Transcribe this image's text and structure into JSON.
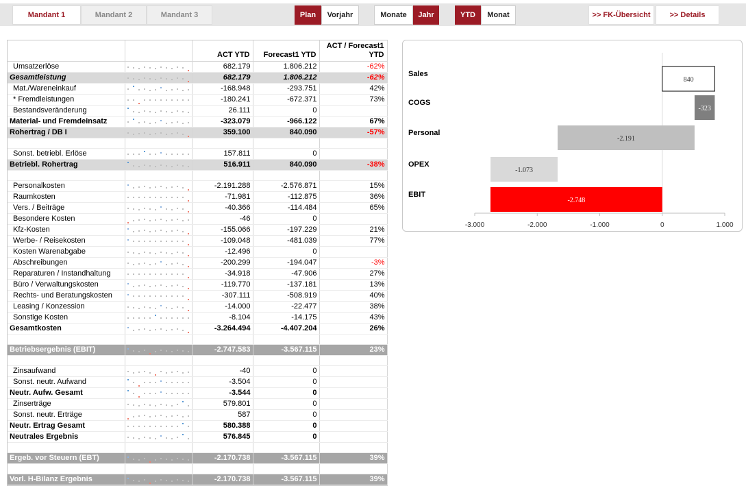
{
  "topbar": {
    "tabs": [
      "Mandant 1",
      "Mandant 2",
      "Mandant 3"
    ],
    "active_tab": 0,
    "plan": "Plan",
    "vorjahr": "Vorjahr",
    "monate": "Monate",
    "jahr": "Jahr",
    "ytd": "YTD",
    "monat": "Monat",
    "fk_link": ">> FK-Übersicht",
    "details_link": ">> Details"
  },
  "colors": {
    "accent": "#9b1b25",
    "negative": "#ff0000",
    "band": "#d9d9d9",
    "total": "#a6a6a6"
  },
  "table": {
    "headers": {
      "label": "",
      "spark": "",
      "act": "ACT YTD",
      "fc": "Forecast1 YTD",
      "pct": "ACT / Forecast1 YTD"
    },
    "rows": [
      {
        "label": "Umsatzerlöse",
        "act": "682.179",
        "fc": "1.806.212",
        "pct": "-62%",
        "style": "indent",
        "neg": true,
        "spark": 1
      },
      {
        "label": "Gesamtleistung",
        "act": "682.179",
        "fc": "1.806.212",
        "pct": "-62%",
        "style": "italic band",
        "neg": true,
        "spark": 1
      },
      {
        "label": "Mat./Wareneinkauf",
        "act": "-168.948",
        "fc": "-293.751",
        "pct": "42%",
        "style": "indent",
        "spark": 2
      },
      {
        "label": "* Fremdleistungen",
        "act": "-180.241",
        "fc": "-672.371",
        "pct": "73%",
        "style": "indent",
        "spark": 3
      },
      {
        "label": "Bestandsveränderung",
        "act": "26.111",
        "fc": "0",
        "pct": "",
        "style": "indent",
        "spark": 4
      },
      {
        "label": "Material- und Fremdeinsatz",
        "act": "-323.079",
        "fc": "-966.122",
        "pct": "67%",
        "style": "bold",
        "spark": 2
      },
      {
        "label": "Rohertrag / DB I",
        "act": "359.100",
        "fc": "840.090",
        "pct": "-57%",
        "style": "bold band",
        "neg": true,
        "spark": 5
      },
      {
        "label": "",
        "act": "",
        "fc": "",
        "pct": "",
        "style": "spacer"
      },
      {
        "label": "Sonst. betriebl. Erlöse",
        "act": "157.811",
        "fc": "0",
        "pct": "",
        "style": "indent",
        "spark": 6
      },
      {
        "label": "Betriebl. Rohertrag",
        "act": "516.911",
        "fc": "840.090",
        "pct": "-38%",
        "style": "bold band",
        "neg": true,
        "spark": 7
      },
      {
        "label": "",
        "act": "",
        "fc": "",
        "pct": "",
        "style": "spacer"
      },
      {
        "label": "Personalkosten",
        "act": "-2.191.288",
        "fc": "-2.576.871",
        "pct": "15%",
        "style": "indent",
        "spark": 8
      },
      {
        "label": "Raumkosten",
        "act": "-71.981",
        "fc": "-112.875",
        "pct": "36%",
        "style": "indent",
        "spark": 9
      },
      {
        "label": "Vers. / Beiträge",
        "act": "-40.366",
        "fc": "-114.484",
        "pct": "65%",
        "style": "indent",
        "spark": 10
      },
      {
        "label": "Besondere Kosten",
        "act": "-46",
        "fc": "0",
        "pct": "",
        "style": "indent",
        "spark": 11
      },
      {
        "label": "Kfz-Kosten",
        "act": "-155.066",
        "fc": "-197.229",
        "pct": "21%",
        "style": "indent",
        "spark": 8
      },
      {
        "label": "Werbe- / Reisekosten",
        "act": "-109.048",
        "fc": "-481.039",
        "pct": "77%",
        "style": "indent",
        "spark": 12
      },
      {
        "label": "Kosten Warenabgabe",
        "act": "-12.496",
        "fc": "0",
        "pct": "",
        "style": "indent",
        "spark": 13
      },
      {
        "label": "Abschreibungen",
        "act": "-200.299",
        "fc": "-194.047",
        "pct": "-3%",
        "style": "indent",
        "neg": true,
        "spark": 14
      },
      {
        "label": "Reparaturen / Instandhaltung",
        "act": "-34.918",
        "fc": "-47.906",
        "pct": "27%",
        "style": "indent",
        "spark": 9
      },
      {
        "label": "Büro / Verwaltungskosten",
        "act": "-119.770",
        "fc": "-137.181",
        "pct": "13%",
        "style": "indent",
        "spark": 8
      },
      {
        "label": "Rechts- und Beratungskosten",
        "act": "-307.111",
        "fc": "-508.919",
        "pct": "40%",
        "style": "indent",
        "spark": 12
      },
      {
        "label": "Leasing / Konzession",
        "act": "-14.000",
        "fc": "-22.477",
        "pct": "38%",
        "style": "indent",
        "spark": 10
      },
      {
        "label": "Sonstige Kosten",
        "act": "-8.104",
        "fc": "-14.175",
        "pct": "43%",
        "style": "indent",
        "spark": 15
      },
      {
        "label": "Gesamtkosten",
        "act": "-3.264.494",
        "fc": "-4.407.204",
        "pct": "26%",
        "style": "bold",
        "spark": 8
      },
      {
        "label": "",
        "act": "",
        "fc": "",
        "pct": "",
        "style": "spacer"
      },
      {
        "label": "Betriebsergebnis (EBIT)",
        "act": "-2.747.583",
        "fc": "-3.567.115",
        "pct": "23%",
        "style": "total",
        "spark": 16
      },
      {
        "label": "",
        "act": "",
        "fc": "",
        "pct": "",
        "style": "spacer"
      },
      {
        "label": "Zinsaufwand",
        "act": "-40",
        "fc": "0",
        "pct": "",
        "style": "indent",
        "spark": 17
      },
      {
        "label": "Sonst. neutr. Aufwand",
        "act": "-3.504",
        "fc": "0",
        "pct": "",
        "style": "indent",
        "spark": 18
      },
      {
        "label": "Neutr. Aufw. Gesamt",
        "act": "-3.544",
        "fc": "0",
        "pct": "",
        "style": "bold",
        "spark": 18
      },
      {
        "label": "Zinserträge",
        "act": "579.801",
        "fc": "0",
        "pct": "",
        "style": "indent",
        "spark": 19
      },
      {
        "label": "Sonst. neutr. Erträge",
        "act": "587",
        "fc": "0",
        "pct": "",
        "style": "indent",
        "spark": 20
      },
      {
        "label": "Neutr. Ertrag Gesamt",
        "act": "580.388",
        "fc": "0",
        "pct": "",
        "style": "bold",
        "spark": 21
      },
      {
        "label": "Neutrales Ergebnis",
        "act": "576.845",
        "fc": "0",
        "pct": "",
        "style": "bold",
        "spark": 22
      },
      {
        "label": "",
        "act": "",
        "fc": "",
        "pct": "",
        "style": "spacer"
      },
      {
        "label": "Ergeb. vor Steuern (EBT)",
        "act": "-2.170.738",
        "fc": "-3.567.115",
        "pct": "39%",
        "style": "total",
        "spark": 16
      },
      {
        "label": "",
        "act": "",
        "fc": "",
        "pct": "",
        "style": "spacer"
      },
      {
        "label": "Vorl. H-Bilanz Ergebnis",
        "act": "-2.170.738",
        "fc": "-3.567.115",
        "pct": "39%",
        "style": "total",
        "spark": 16
      }
    ]
  },
  "chart_data": {
    "type": "bar",
    "orientation": "horizontal-waterfall",
    "categories": [
      "Sales",
      "COGS",
      "Personal",
      "OPEX",
      "EBIT"
    ],
    "values": [
      840,
      -323,
      -2191,
      -1073,
      -2748
    ],
    "value_labels": [
      "840",
      "-323",
      "-2.191",
      "-1.073",
      "-2.748"
    ],
    "colors": [
      "#ffffff",
      "#7f7f7f",
      "#bfbfbf",
      "#d9d9d9",
      "#ff0000"
    ],
    "xlim": [
      -3000,
      1000
    ],
    "xticks": [
      -3000,
      -2000,
      -1000,
      0,
      1000
    ],
    "xtick_labels": [
      "-3.000",
      "-2.000",
      "-1.000",
      "0",
      "1.000"
    ],
    "title": "",
    "xlabel": "",
    "ylabel": ""
  }
}
